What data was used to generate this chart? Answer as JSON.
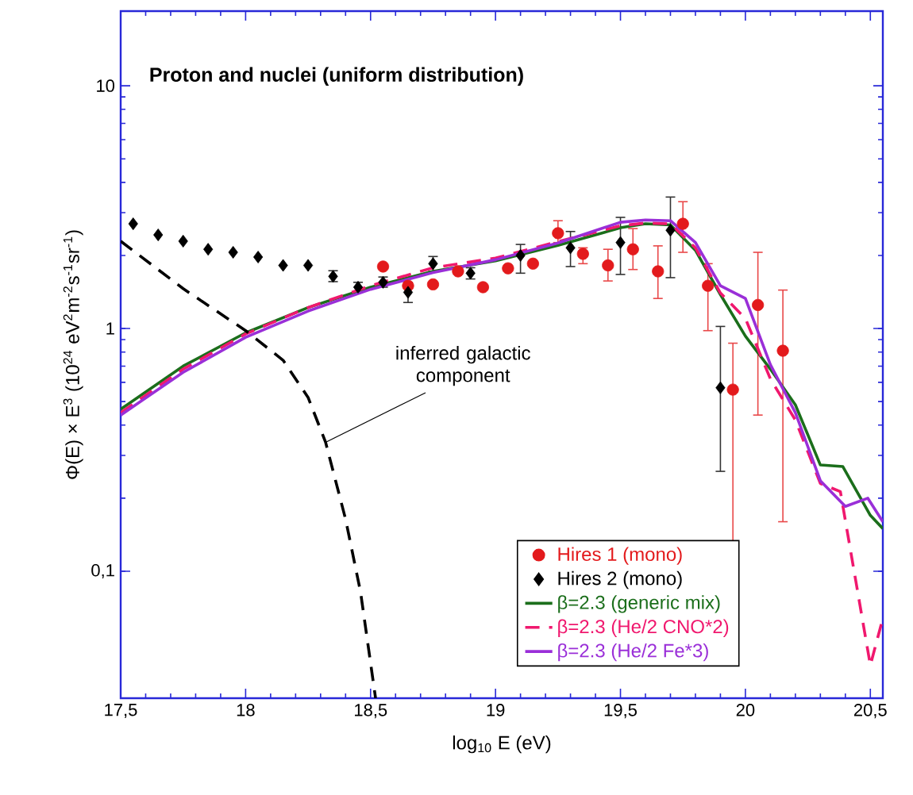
{
  "chart_data": {
    "type": "line",
    "title": "Proton and nuclei (uniform distribution)",
    "xlabel": "log$_{10}$ E (eV)",
    "ylabel": "Φ(E) × E$^{3}$ (10$^{24}$ eV$^{2}$m$^{-2}$s$^{-1}$sr$^{-1}$)",
    "log": "y",
    "xlim": [
      17.5,
      20.55
    ],
    "ylim": [
      0.03,
      20.3
    ],
    "xticks": [
      {
        "value": 17.5,
        "label": "17,5"
      },
      18,
      {
        "value": 18.5,
        "label": "18,5"
      },
      19,
      {
        "value": 19.5,
        "label": "19,5"
      },
      20,
      {
        "value": 20.5,
        "label": "20,5"
      }
    ],
    "yticks": [
      {
        "value": 0.1,
        "label": "0,1"
      },
      1,
      10
    ],
    "legend": "bottom right",
    "annotations": [
      {
        "text": "inferred galactic component",
        "x": 18.32,
        "y": 0.34
      }
    ],
    "series": [
      {
        "name": "Hires 1 (mono)",
        "type": "scatter",
        "marker": "circle",
        "color": "#e31a1c",
        "x": [
          18.55,
          18.65,
          18.75,
          18.85,
          18.95,
          19.05,
          19.15,
          19.25,
          19.35,
          19.45,
          19.55,
          19.65,
          19.75,
          19.85,
          19.95,
          20.05,
          20.15
        ],
        "values": [
          1.8,
          1.5,
          1.52,
          1.72,
          1.48,
          1.77,
          1.85,
          2.47,
          2.03,
          1.82,
          2.12,
          1.72,
          2.7,
          1.5,
          0.56,
          1.25,
          0.81
        ],
        "errors": [
          null,
          null,
          null,
          null,
          null,
          null,
          null,
          [
            2.26,
            2.78
          ],
          [
            1.85,
            2.15
          ],
          [
            1.57,
            2.12
          ],
          [
            1.75,
            2.58
          ],
          [
            1.33,
            2.19
          ],
          [
            2.06,
            3.33
          ],
          [
            0.98,
            1.85
          ],
          [
            0.047,
            0.87
          ],
          [
            0.44,
            2.06
          ],
          [
            0.16,
            1.44
          ]
        ]
      },
      {
        "name": "Hires 2 (mono)",
        "type": "scatter",
        "marker": "diamond",
        "color": "#000000",
        "x": [
          17.55,
          17.65,
          17.75,
          17.85,
          17.95,
          18.05,
          18.15,
          18.25,
          18.35,
          18.45,
          18.55,
          18.65,
          18.75,
          18.9,
          19.1,
          19.3,
          19.5,
          19.7,
          19.9
        ],
        "values": [
          2.7,
          2.43,
          2.29,
          2.12,
          2.06,
          1.97,
          1.82,
          1.82,
          1.64,
          1.48,
          1.55,
          1.41,
          1.85,
          1.69,
          2.0,
          2.15,
          2.26,
          2.54,
          0.57
        ],
        "errors": [
          null,
          null,
          null,
          null,
          null,
          null,
          null,
          null,
          [
            1.56,
            1.73
          ],
          [
            1.42,
            1.55
          ],
          [
            1.48,
            1.63
          ],
          [
            1.28,
            1.55
          ],
          [
            1.72,
            1.98
          ],
          [
            1.6,
            1.78
          ],
          [
            1.69,
            2.22
          ],
          [
            1.8,
            2.51
          ],
          [
            1.67,
            2.87
          ],
          [
            1.62,
            3.48
          ],
          [
            0.258,
            1.02
          ]
        ]
      },
      {
        "name": "β=2.3 (generic mix)",
        "marker": "none",
        "line_style": "solid",
        "color": "#1b6e1b",
        "x": [
          17.5,
          17.75,
          18,
          18.25,
          18.5,
          18.75,
          19,
          19.25,
          19.5,
          19.6,
          19.7,
          19.8,
          19.9,
          20,
          20.1,
          20.2,
          20.3,
          20.39,
          20.5,
          20.55
        ],
        "values": [
          0.465,
          0.7,
          0.96,
          1.22,
          1.48,
          1.72,
          1.9,
          2.2,
          2.6,
          2.7,
          2.67,
          2.1,
          1.38,
          0.93,
          0.68,
          0.485,
          0.274,
          0.27,
          0.17,
          0.15
        ]
      },
      {
        "name": "β=2.3 (He/2 CNO*2)",
        "marker": "none",
        "line_style": "dashed",
        "color": "#f0186e",
        "x": [
          17.5,
          17.75,
          18,
          18.25,
          18.5,
          18.75,
          19,
          19.25,
          19.5,
          19.6,
          19.7,
          19.8,
          19.9,
          20,
          20.1,
          20.2,
          20.3,
          20.38,
          20.5,
          20.55
        ],
        "values": [
          0.45,
          0.68,
          0.95,
          1.22,
          1.5,
          1.78,
          1.95,
          2.28,
          2.65,
          2.72,
          2.7,
          2.15,
          1.4,
          1.1,
          0.62,
          0.42,
          0.23,
          0.213,
          0.041,
          0.064
        ]
      },
      {
        "name": "β=2.3 (He/2 Fe*3)",
        "marker": "none",
        "line_style": "solid",
        "color": "#9a2fd8",
        "x": [
          17.5,
          17.75,
          18,
          18.25,
          18.5,
          18.75,
          19,
          19.25,
          19.5,
          19.6,
          19.7,
          19.8,
          19.9,
          20,
          20.1,
          20.2,
          20.3,
          20.4,
          20.49,
          20.55
        ],
        "values": [
          0.44,
          0.66,
          0.92,
          1.18,
          1.45,
          1.7,
          1.92,
          2.25,
          2.74,
          2.8,
          2.78,
          2.26,
          1.5,
          1.33,
          0.71,
          0.45,
          0.236,
          0.185,
          0.2,
          0.16
        ]
      },
      {
        "marker": "none",
        "line_style": "dashed",
        "color": "#000000",
        "x": [
          17.5,
          17.75,
          18,
          18.15,
          18.25,
          18.32,
          18.4,
          18.46,
          18.52
        ],
        "values": [
          2.29,
          1.46,
          0.98,
          0.74,
          0.52,
          0.34,
          0.164,
          0.082,
          0.03
        ]
      }
    ]
  }
}
